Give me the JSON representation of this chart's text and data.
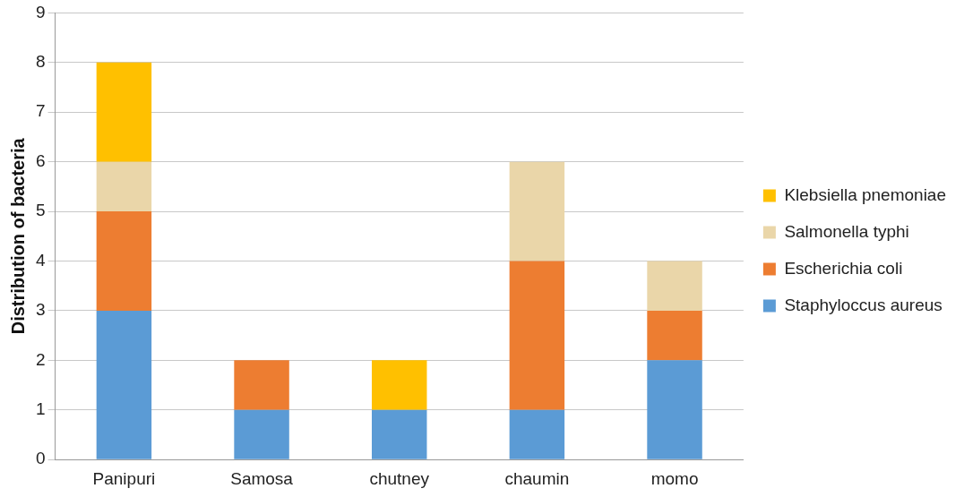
{
  "chart_data": {
    "type": "bar",
    "stacked": true,
    "ylabel": "Distribution of bacteria",
    "categories": [
      "Panipuri",
      "Samosa",
      "chutney",
      "chaumin",
      "momo"
    ],
    "series": [
      {
        "name": "Staphyloccus aureus",
        "color": "#5b9bd5",
        "values": [
          3,
          1,
          1,
          1,
          2
        ]
      },
      {
        "name": "Escherichia coli",
        "color": "#ed7d31",
        "values": [
          2,
          1,
          0,
          3,
          1
        ]
      },
      {
        "name": "Salmonella typhi",
        "color": "#ead6a9",
        "values": [
          1,
          0,
          0,
          2,
          1
        ]
      },
      {
        "name": "Klebsiella pnemoniae",
        "color": "#ffc000",
        "values": [
          2,
          0,
          1,
          0,
          0
        ]
      }
    ],
    "ylim": [
      0,
      9
    ],
    "yticks": [
      0,
      1,
      2,
      3,
      4,
      5,
      6,
      7,
      8,
      9
    ],
    "grid": "y",
    "legend": "right"
  }
}
